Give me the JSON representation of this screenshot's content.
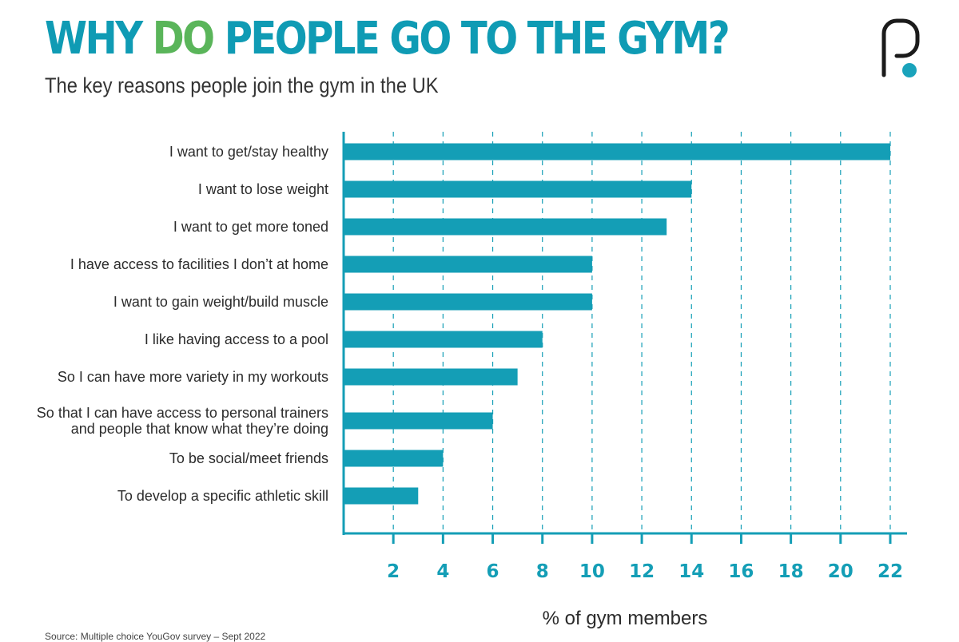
{
  "header": {
    "title_parts": [
      "WHY ",
      "DO",
      " PEOPLE GO TO THE GYM?"
    ],
    "subtitle": "The key reasons people join the gym in the UK"
  },
  "colors": {
    "title_blue": "#0f9bb4",
    "title_green": "#5ab55a",
    "bar": "#149eb6",
    "axis": "#149eb6",
    "grid": "#149eb6",
    "logo_dot": "#1aa3bb"
  },
  "logo": {
    "icon": "brand-p-logo-icon"
  },
  "source": "Source: Multiple choice YouGov survey – Sept 2022",
  "chart_data": {
    "type": "bar",
    "orientation": "horizontal",
    "categories": [
      [
        "I want to get/stay healthy"
      ],
      [
        "I want to lose weight"
      ],
      [
        "I want to get more toned"
      ],
      [
        "I have access to facilities I don’t at home"
      ],
      [
        "I want to gain weight/build muscle"
      ],
      [
        "I like having access to a pool"
      ],
      [
        "So I can have more variety in my workouts"
      ],
      [
        "So that I can have access to personal trainers",
        "and people that know what they’re doing"
      ],
      [
        "To be social/meet friends"
      ],
      [
        "To develop a specific athletic skill"
      ]
    ],
    "values": [
      22,
      14,
      13,
      10,
      10,
      8,
      7,
      6,
      4,
      3
    ],
    "xlabel": "% of gym members",
    "xlim": [
      0,
      22
    ],
    "xticks": [
      2,
      4,
      6,
      8,
      10,
      12,
      14,
      16,
      18,
      20,
      22
    ],
    "grid": "vertical dashed"
  }
}
